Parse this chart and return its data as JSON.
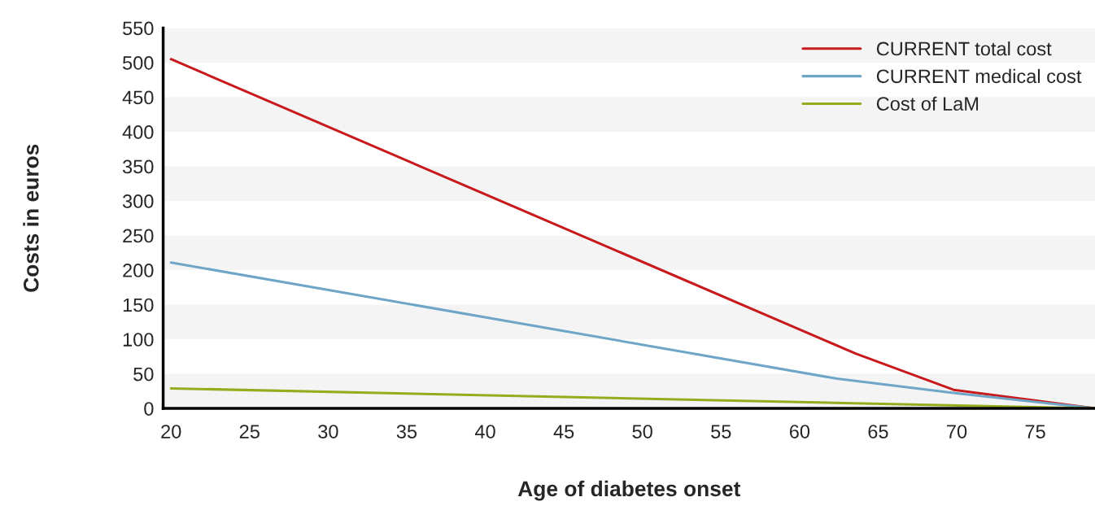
{
  "chart_data": {
    "type": "line",
    "xlabel": "Age of diabetes onset",
    "ylabel": "Costs in euros",
    "series": [
      {
        "name": "CURRENT total cost",
        "color": "#c81a1c",
        "x": [
          20,
          63.6,
          69.8,
          78.8
        ],
        "values": [
          505,
          79,
          27,
          0
        ]
      },
      {
        "name": "CURRENT medical cost",
        "color": "#6fa6c8",
        "x": [
          20,
          62.4,
          70,
          78.8
        ],
        "values": [
          211,
          43,
          22,
          0
        ]
      },
      {
        "name": "Cost of LaM",
        "color": "#95ac1e",
        "x": [
          20,
          78.8
        ],
        "values": [
          29,
          0
        ]
      }
    ],
    "xlim": [
      19.5,
      78.8
    ],
    "xticks": [
      20,
      25,
      30,
      35,
      40,
      45,
      50,
      55,
      60,
      65,
      70,
      75
    ],
    "ylim": [
      0,
      550
    ],
    "yticks": [
      0,
      50,
      100,
      150,
      200,
      250,
      300,
      350,
      400,
      450,
      500,
      550
    ],
    "bands": [
      {
        "axis": "y",
        "from": 0,
        "to": 50,
        "color": "#f4f4f4"
      },
      {
        "axis": "y",
        "from": 100,
        "to": 150,
        "color": "#f4f4f4"
      },
      {
        "axis": "y",
        "from": 200,
        "to": 250,
        "color": "#f4f4f4"
      },
      {
        "axis": "y",
        "from": 300,
        "to": 350,
        "color": "#f4f4f4"
      },
      {
        "axis": "y",
        "from": 400,
        "to": 450,
        "color": "#f4f4f4"
      },
      {
        "axis": "y",
        "from": 500,
        "to": 550,
        "color": "#f4f4f4"
      }
    ],
    "legend": "top right",
    "marker": "none",
    "line_style": "solid"
  }
}
